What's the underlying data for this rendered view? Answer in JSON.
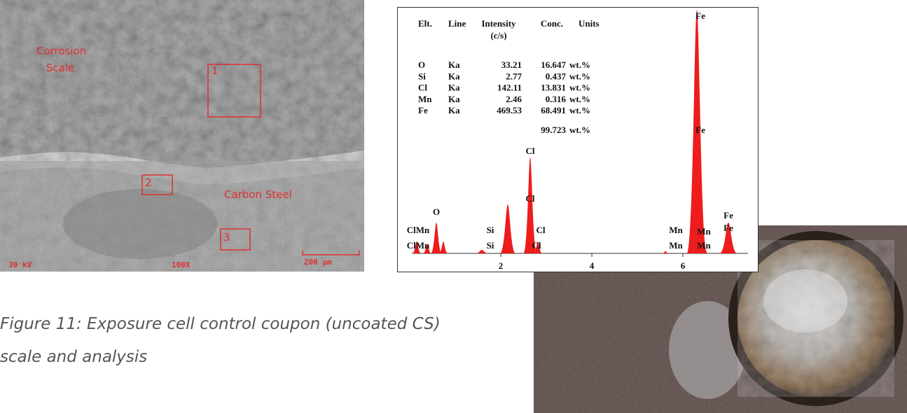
{
  "sem_image": {
    "region_labels": [
      "Corrosion",
      "Scale",
      "Carbon Steel"
    ],
    "boxes": [
      "1",
      "2",
      "3"
    ],
    "footer": [
      "30 kV",
      "100X",
      "200 µm"
    ]
  },
  "eds": {
    "header": [
      "Elt.",
      "Line",
      "Intensity",
      "(c/s)",
      "Conc.",
      "Units"
    ],
    "rows": [
      [
        "O",
        "Ka",
        "33.21",
        "16.647",
        "wt.%"
      ],
      [
        "Si",
        "Ka",
        "2.77",
        "0.437",
        "wt.%"
      ],
      [
        "Cl",
        "Ka",
        "142.11",
        "13.831",
        "wt.%"
      ],
      [
        "Mn",
        "Ka",
        "2.46",
        "0.316",
        "wt.%"
      ],
      [
        "Fe",
        "Ka",
        "469.53",
        "68.491",
        "wt.%"
      ]
    ],
    "total": {
      "conc": "99.723",
      "units": "wt.%"
    },
    "peak_labels": [
      "Fe",
      "Fe",
      "Cl",
      "Cl",
      "O",
      "ClMn",
      "ClMn",
      "Si",
      "Si",
      "Cl",
      "Cl",
      "Mn",
      "Mn",
      "Mn",
      "Mn",
      "Fe",
      "Fe"
    ],
    "xlim": [
      0,
      7.4
    ],
    "xticks": [
      2,
      4,
      6
    ]
  },
  "caption": [
    "Figure 11: Exposure cell control coupon (uncoated CS)",
    "scale and analysis"
  ]
}
